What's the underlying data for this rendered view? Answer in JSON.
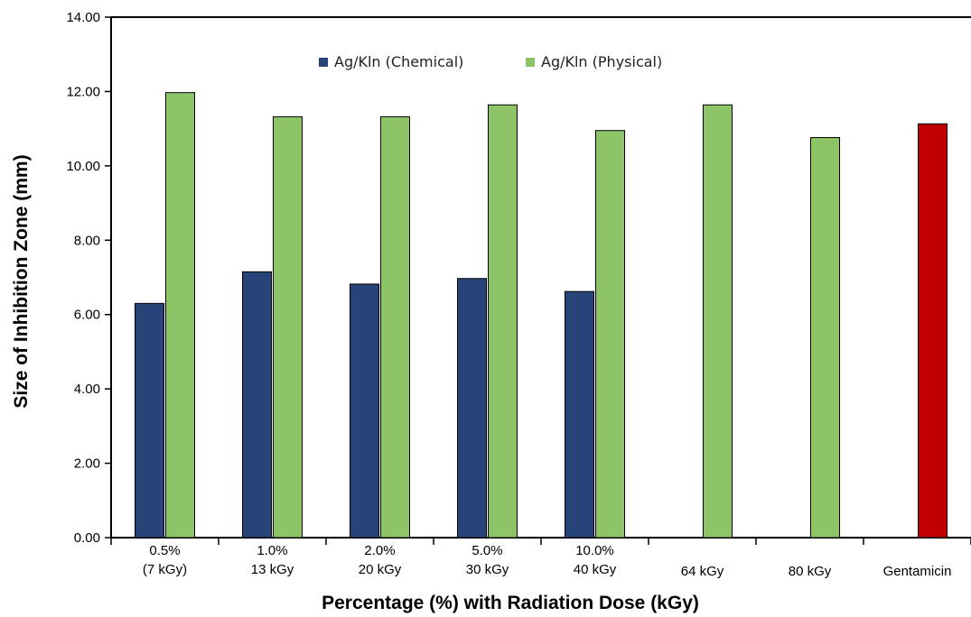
{
  "chart_data": {
    "type": "bar",
    "title": "",
    "xlabel": "Percentage (%) with Radiation Dose (kGy)",
    "ylabel": "Size of Inhibition Zone (mm)",
    "ylim": [
      0,
      14
    ],
    "yticks": [
      "0.00",
      "2.00",
      "4.00",
      "6.00",
      "8.00",
      "10.00",
      "12.00",
      "14.00"
    ],
    "categories": [
      [
        "0.5%",
        "(7 kGy)"
      ],
      [
        "1.0%",
        "13 kGy"
      ],
      [
        "2.0%",
        "20 kGy"
      ],
      [
        "5.0%",
        "30 kGy"
      ],
      [
        "10.0%",
        "40 kGy"
      ],
      [
        "64 kGy"
      ],
      [
        "80 kGy"
      ],
      [
        "Gentamicin"
      ]
    ],
    "series": [
      {
        "name": "Ag/Kln (Chemical)",
        "color": "#264478",
        "values": [
          6.3,
          7.15,
          6.82,
          6.97,
          6.62,
          null,
          null,
          null
        ]
      },
      {
        "name": "Ag/Kln (Physical)",
        "color": "#8dc467",
        "values": [
          11.97,
          11.32,
          11.32,
          11.64,
          10.95,
          11.64,
          10.76,
          null
        ]
      },
      {
        "color": "#c00000",
        "values": [
          null,
          null,
          null,
          null,
          null,
          null,
          null,
          11.13
        ]
      }
    ],
    "legend_position": "top-center",
    "grid": false
  }
}
